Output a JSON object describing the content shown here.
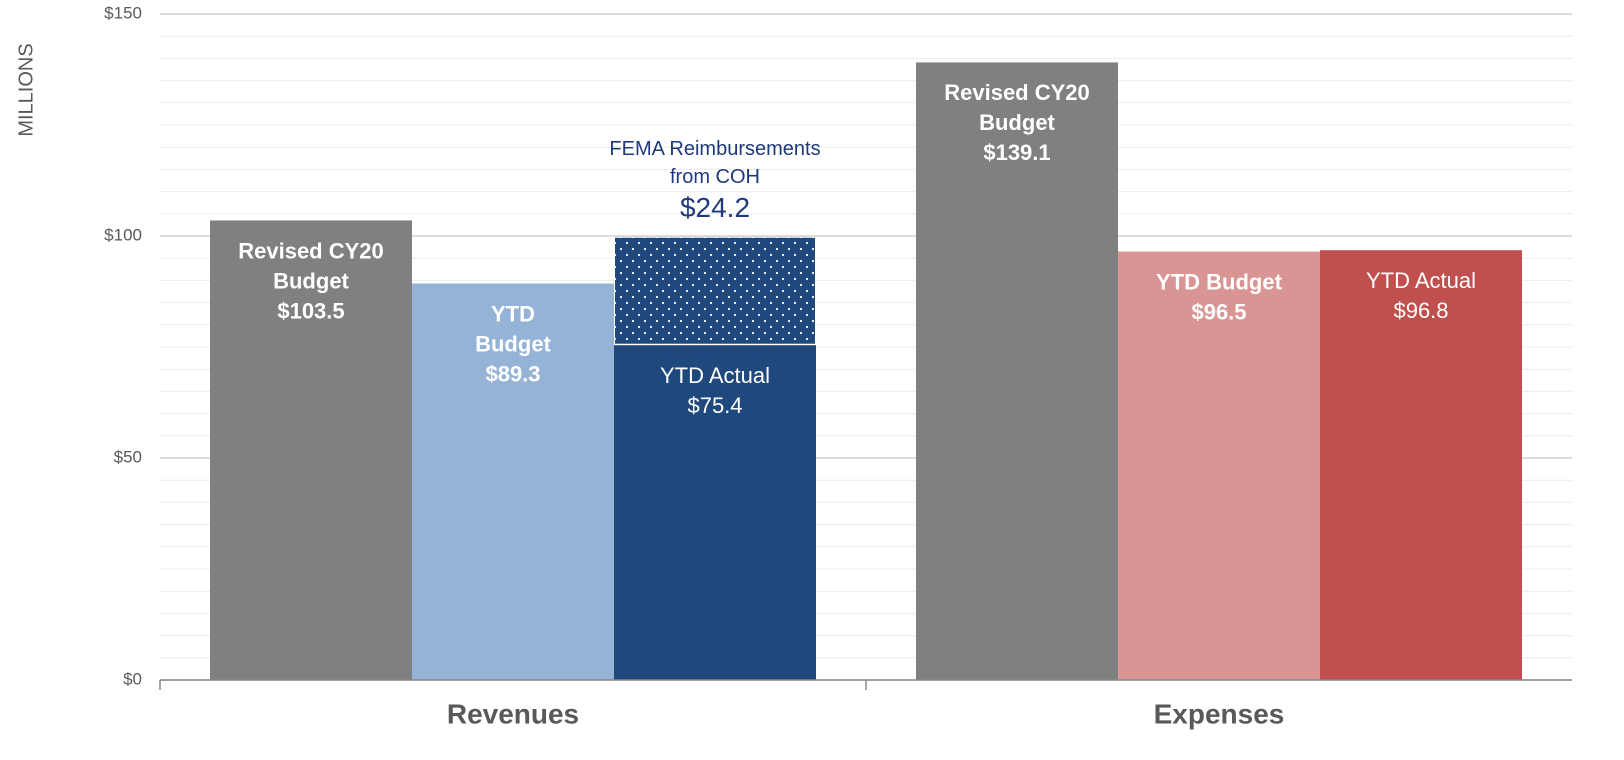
{
  "chart_data": {
    "type": "bar",
    "ylabel": "MILLIONS",
    "ylim": [
      0,
      150
    ],
    "yticks": [
      {
        "value": 0,
        "label": "$0"
      },
      {
        "value": 50,
        "label": "$50"
      },
      {
        "value": 100,
        "label": "$100"
      },
      {
        "value": 150,
        "label": "$150"
      }
    ],
    "grid": true,
    "minor_grid_step": 5,
    "groups": [
      {
        "name": "Revenues",
        "bars": [
          {
            "label": [
              "Revised CY20",
              "Budget"
            ],
            "value": 103.5,
            "value_label": "$103.5",
            "color": "#808080",
            "bold": true
          },
          {
            "label": [
              "YTD",
              "Budget"
            ],
            "value": 89.3,
            "value_label": "$89.3",
            "color": "#95b3d7",
            "bold": true
          },
          {
            "label": [
              "YTD Actual"
            ],
            "value": 75.4,
            "value_label": "$75.4",
            "color": "#1f497d",
            "bold": false,
            "stack": {
              "label": [
                "FEMA Reimbursements",
                "from COH"
              ],
              "value": 24.2,
              "value_label": "$24.2",
              "color": "#1f497d",
              "label_color": "#1f3a7a",
              "pattern": "dots"
            }
          }
        ]
      },
      {
        "name": "Expenses",
        "bars": [
          {
            "label": [
              "Revised CY20",
              "Budget"
            ],
            "value": 139.1,
            "value_label": "$139.1",
            "color": "#808080",
            "bold": true
          },
          {
            "label": [
              "YTD Budget"
            ],
            "value": 96.5,
            "value_label": "$96.5",
            "color": "#d99594",
            "bold": true
          },
          {
            "label": [
              "YTD Actual"
            ],
            "value": 96.8,
            "value_label": "$96.8",
            "color": "#c0504d",
            "bold": false
          }
        ]
      }
    ]
  }
}
